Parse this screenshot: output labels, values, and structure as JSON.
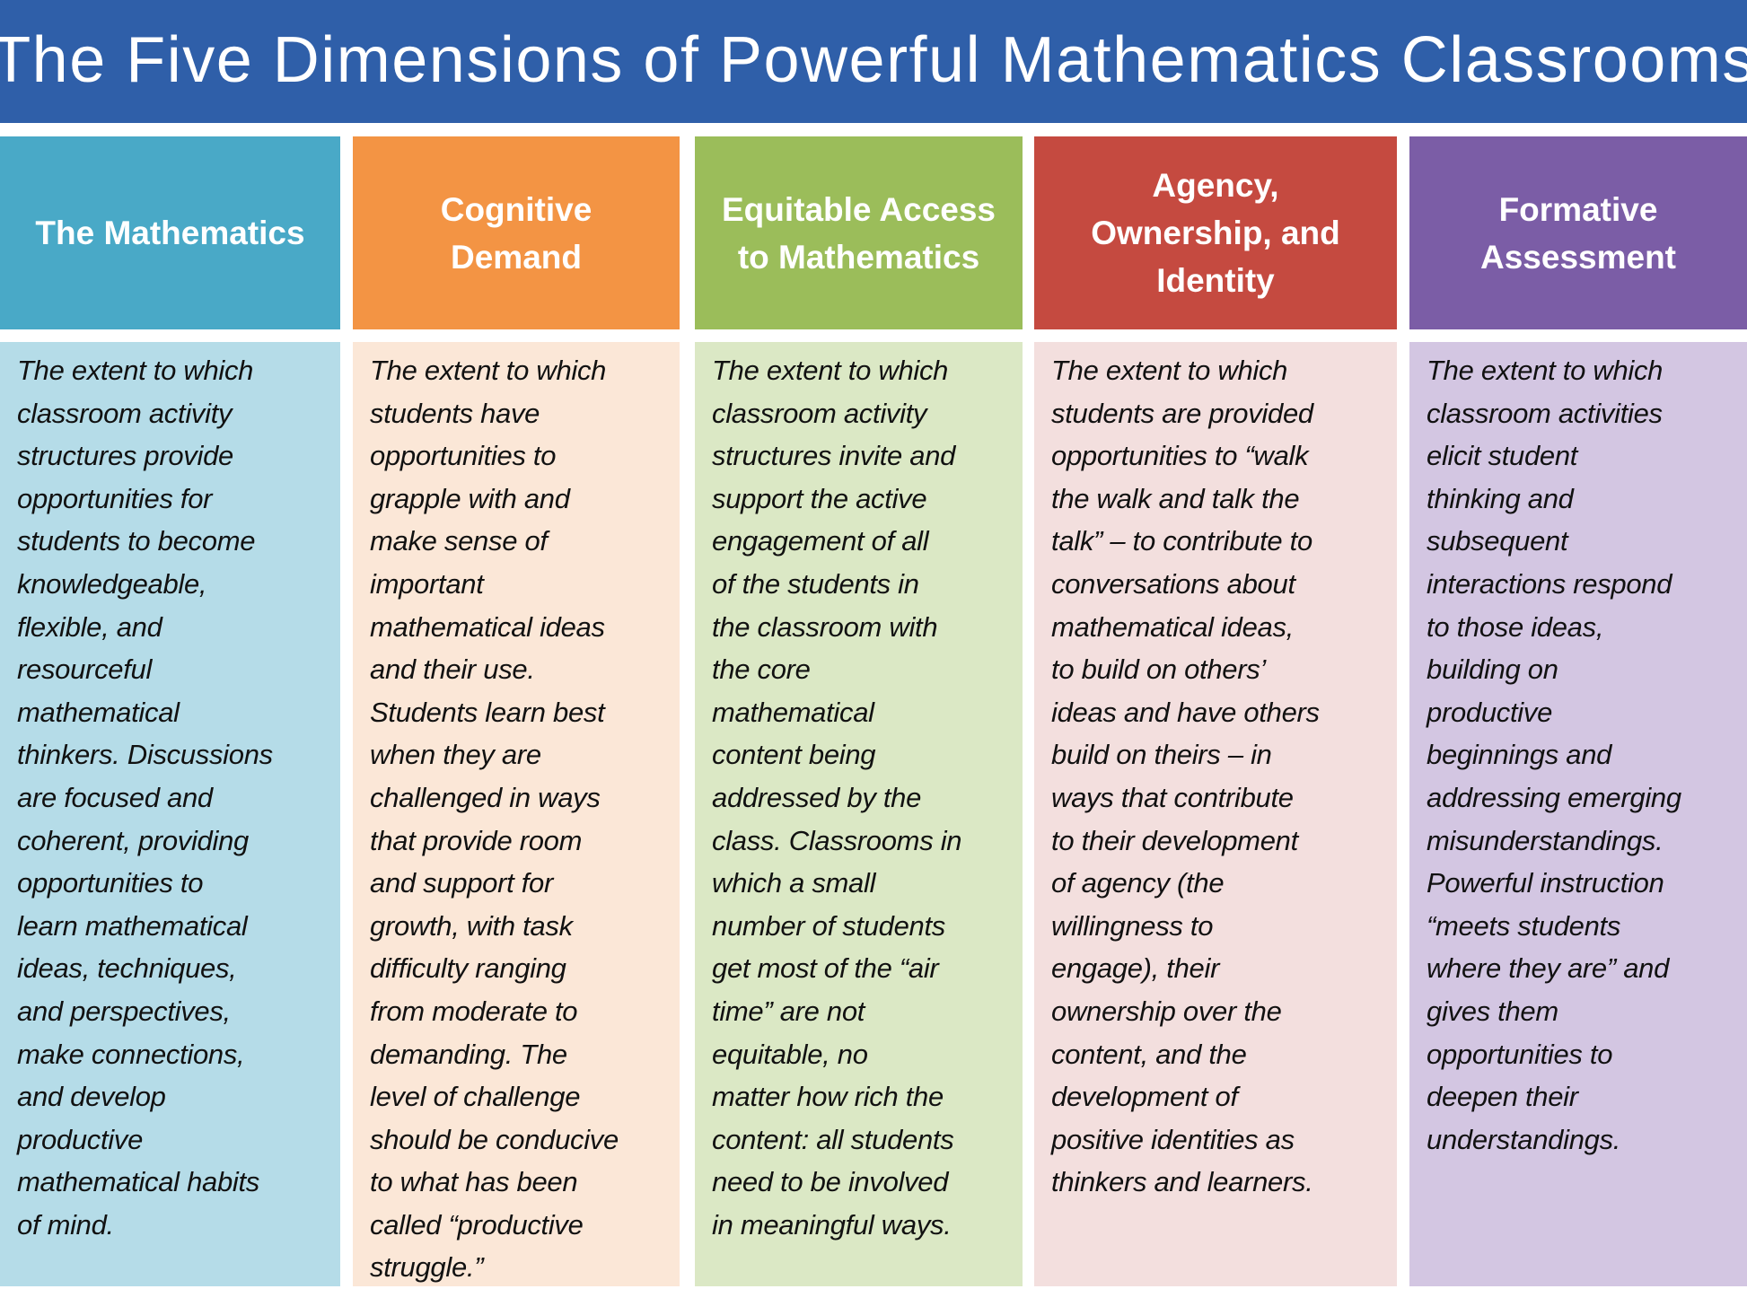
{
  "title": "The Five Dimensions of Powerful Mathematics Classrooms",
  "colors": {
    "title_bar": "#2f5fa9"
  },
  "columns": [
    {
      "heading": [
        "The Mathematics"
      ],
      "head_color": "#49a9c7",
      "body_color": "#b5dce8",
      "lines": [
        "The extent to which",
        "classroom activity",
        "structures provide",
        "opportunities for",
        "students to become",
        "knowledgeable,",
        "flexible, and",
        "resourceful",
        "mathematical",
        "thinkers. Discussions",
        "are focused and",
        "coherent, providing",
        "opportunities to",
        "learn mathematical",
        "ideas, techniques,",
        "and perspectives,",
        "make connections,",
        "and develop",
        "productive",
        "mathematical habits",
        "of mind."
      ]
    },
    {
      "heading": [
        "Cognitive",
        "Demand"
      ],
      "head_color": "#f39444",
      "body_color": "#fbe7d7",
      "lines": [
        "The extent to which",
        "students have",
        "opportunities to",
        "grapple with and",
        "make sense of",
        "important",
        "mathematical ideas",
        "and their use.",
        "Students learn best",
        "when they are",
        "challenged in ways",
        "that provide room",
        "and support for",
        "growth, with task",
        "difficulty ranging",
        "from moderate to",
        "demanding.  The",
        "level of challenge",
        "should  be conducive",
        "to what has been",
        "called “productive",
        "struggle.”"
      ]
    },
    {
      "heading": [
        "Equitable Access",
        "to Mathematics"
      ],
      "head_color": "#9bbd5a",
      "body_color": "#dbe8c5",
      "lines": [
        "The extent to which",
        "classroom activity",
        "structures invite and",
        "support the active",
        "engagement of all",
        "of the students in",
        "the classroom with",
        "the core",
        "mathematical",
        "content being",
        "addressed by the",
        "class.  Classrooms  in",
        "which a small",
        "number of students",
        "get most of the “air",
        "time” are not",
        "equitable, no",
        "matter how rich the",
        "content: all students",
        "need to be involved",
        "in meaningful  ways."
      ]
    },
    {
      "heading": [
        "Agency,",
        "Ownership, and",
        "Identity"
      ],
      "head_color": "#c54a40",
      "body_color": "#f3dfde",
      "lines": [
        "The extent to which",
        "students are provided",
        "opportunities to “walk",
        "the walk and talk the",
        "talk” – to contribute to",
        "conversations about",
        "mathematical ideas,",
        "to build on others’",
        "ideas and have others",
        "build on theirs – in",
        "ways that contribute",
        "to their development",
        "of agency (the",
        "willingness  to",
        "engage), their",
        "ownership over the",
        "content, and the",
        "development of",
        "positive identities as",
        "thinkers and learners."
      ]
    },
    {
      "heading": [
        "Formative",
        "Assessment"
      ],
      "head_color": "#7b5da6",
      "body_color": "#d3c6e2",
      "lines": [
        "The extent to which",
        "classroom  activities",
        "elicit student",
        "thinking  and",
        "subsequent",
        "interactions respond",
        "to those ideas,",
        "building on",
        "productive",
        "beginnings  and",
        "addressing  emerging",
        "misunderstandings.",
        "Powerful instruction",
        "“meets students",
        "where they are” and",
        "gives them",
        "opportunities to",
        "deepen their",
        "understandings."
      ]
    }
  ]
}
